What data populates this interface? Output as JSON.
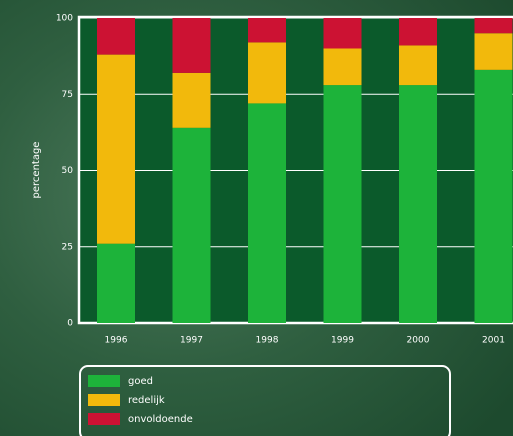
{
  "chart_data": {
    "type": "stacked-bar",
    "y_label": "percentage",
    "categories": [
      "1996",
      "1997",
      "1998",
      "1999",
      "2000",
      "2001"
    ],
    "series": [
      {
        "name": "goed",
        "color": "#1db33a",
        "values": [
          26,
          64,
          72,
          78,
          78,
          83
        ]
      },
      {
        "name": "redelijk",
        "color": "#f2b90c",
        "values": [
          62,
          18,
          20,
          12,
          13,
          12
        ]
      },
      {
        "name": "onvoldoende",
        "color": "#cc1233",
        "values": [
          12,
          18,
          8,
          10,
          9,
          5
        ]
      }
    ],
    "ylim": [
      0,
      100
    ],
    "yticks": [
      0,
      25,
      50,
      75,
      100
    ],
    "grid": true
  }
}
